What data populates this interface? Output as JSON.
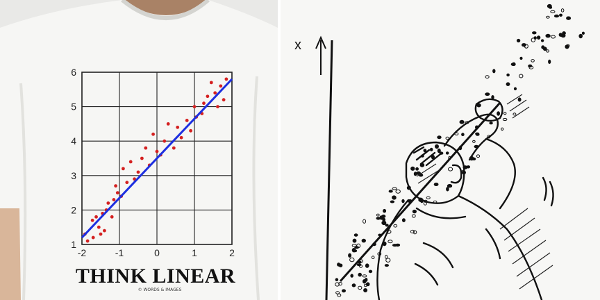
{
  "tshirt": {
    "slogan": "THINK LINEAR",
    "brand": "© WORDS & IMAGES",
    "colors": {
      "shirt": "#f6f6f4",
      "grid": "#222222",
      "points": "#d42020",
      "fit_line": "#1d2fe0",
      "text": "#111111"
    }
  },
  "chart_data": {
    "type": "scatter",
    "x_ticks": [
      "-2",
      "-1",
      "0",
      "1",
      "2"
    ],
    "y_ticks": [
      "1",
      "2",
      "3",
      "4",
      "5",
      "6"
    ],
    "xlim": [
      -2,
      2
    ],
    "ylim": [
      1,
      6
    ],
    "grid": true,
    "series": [
      {
        "kind": "points",
        "x": [
          -1.92,
          -1.85,
          -1.72,
          -1.7,
          -1.62,
          -1.55,
          -1.5,
          -1.45,
          -1.4,
          -1.35,
          -1.3,
          -1.2,
          -1.15,
          -1.1,
          -1.05,
          -0.95,
          -0.9,
          -0.8,
          -0.7,
          -0.6,
          -0.5,
          -0.4,
          -0.3,
          -0.2,
          -0.1,
          0.0,
          0.1,
          0.2,
          0.3,
          0.45,
          0.55,
          0.65,
          0.8,
          0.9,
          1.0,
          1.05,
          1.2,
          1.25,
          1.35,
          1.45,
          1.55,
          1.62,
          1.7,
          1.78,
          1.85
        ],
        "y": [
          1.3,
          1.1,
          1.7,
          1.2,
          1.8,
          1.5,
          1.3,
          1.9,
          1.4,
          2.0,
          2.2,
          1.8,
          2.3,
          2.7,
          2.5,
          2.4,
          3.2,
          2.8,
          3.4,
          2.9,
          3.1,
          3.5,
          3.8,
          3.3,
          4.2,
          3.7,
          3.6,
          4.0,
          4.5,
          3.8,
          4.4,
          4.1,
          4.6,
          4.3,
          5.0,
          4.7,
          4.8,
          5.1,
          5.3,
          5.7,
          5.4,
          5.0,
          5.6,
          5.2,
          5.8
        ]
      },
      {
        "kind": "fit-line",
        "x": [
          -2,
          2
        ],
        "y": [
          1.2,
          5.8
        ]
      }
    ]
  },
  "sketch": {
    "axis_label": "x",
    "colors": {
      "paper": "#f7f7f5",
      "ink": "#111111"
    }
  }
}
